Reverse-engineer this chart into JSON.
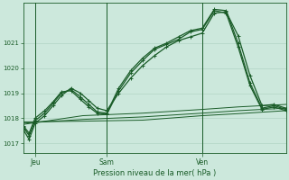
{
  "bg_color": "#cce8dc",
  "grid_color": "#aacfbf",
  "line_color": "#1a5c28",
  "xlabel": "Pression niveau de la mer( hPa )",
  "xtick_labels": [
    "Jeu",
    "Sam",
    "Ven"
  ],
  "ylim": [
    1016.6,
    1022.6
  ],
  "yticks": [
    1017,
    1018,
    1019,
    1020,
    1021
  ],
  "xlim": [
    0,
    22
  ],
  "xtick_positions": [
    1,
    7,
    15
  ],
  "vline_positions": [
    1,
    7,
    15
  ],
  "series": [
    {
      "x": [
        0,
        0.5,
        1,
        1.8,
        2.5,
        3.2,
        4.0,
        4.8,
        5.5,
        6.2,
        7.0,
        8.0,
        9.0,
        10.0,
        11.0,
        12.0,
        13.0,
        14.0,
        15.0,
        16.0,
        17.0,
        18.0,
        19.0,
        20.0,
        21.0,
        22.0
      ],
      "y": [
        1017.55,
        1017.15,
        1017.8,
        1018.1,
        1018.5,
        1018.9,
        1019.2,
        1019.0,
        1018.7,
        1018.4,
        1018.3,
        1019.0,
        1019.6,
        1020.1,
        1020.5,
        1020.85,
        1021.1,
        1021.25,
        1021.4,
        1022.2,
        1022.25,
        1021.3,
        1019.7,
        1018.5,
        1018.55,
        1018.4
      ],
      "marker": true,
      "lw": 0.9
    },
    {
      "x": [
        0,
        0.5,
        1,
        1.8,
        2.5,
        3.2,
        4.0,
        4.8,
        5.5,
        6.2,
        7.0,
        8.0,
        9.0,
        10.0,
        11.0,
        12.0,
        13.0,
        14.0,
        15.0,
        16.0,
        17.0,
        18.0,
        19.0,
        20.0,
        21.0,
        22.0
      ],
      "y": [
        1017.65,
        1017.3,
        1017.9,
        1018.2,
        1018.6,
        1019.0,
        1019.15,
        1018.85,
        1018.55,
        1018.25,
        1018.2,
        1019.2,
        1019.9,
        1020.4,
        1020.8,
        1021.0,
        1021.25,
        1021.5,
        1021.6,
        1022.35,
        1022.3,
        1021.0,
        1019.4,
        1018.4,
        1018.5,
        1018.35
      ],
      "marker": true,
      "lw": 0.9
    },
    {
      "x": [
        0,
        0.5,
        1,
        1.8,
        2.5,
        3.2,
        4.0,
        4.8,
        5.5,
        6.2,
        7.0,
        8.0,
        9.0,
        10.0,
        11.0,
        12.0,
        13.0,
        14.0,
        15.0,
        16.0,
        17.0,
        18.0,
        19.0,
        20.0,
        21.0,
        22.0
      ],
      "y": [
        1017.7,
        1017.4,
        1018.0,
        1018.3,
        1018.65,
        1019.05,
        1019.1,
        1018.75,
        1018.45,
        1018.2,
        1018.15,
        1019.1,
        1019.8,
        1020.3,
        1020.75,
        1020.95,
        1021.15,
        1021.45,
        1021.55,
        1022.3,
        1022.2,
        1020.85,
        1019.3,
        1018.35,
        1018.45,
        1018.3
      ],
      "marker": true,
      "lw": 0.9
    },
    {
      "x": [
        0,
        5,
        10,
        15,
        18,
        22
      ],
      "y": [
        1017.75,
        1018.1,
        1018.2,
        1018.35,
        1018.45,
        1018.55
      ],
      "marker": false,
      "lw": 0.7
    },
    {
      "x": [
        0,
        5,
        10,
        15,
        18,
        22
      ],
      "y": [
        1017.8,
        1017.95,
        1018.05,
        1018.2,
        1018.3,
        1018.4
      ],
      "marker": false,
      "lw": 0.7
    },
    {
      "x": [
        0,
        5,
        10,
        15,
        18,
        22
      ],
      "y": [
        1017.85,
        1017.88,
        1017.92,
        1018.1,
        1018.18,
        1018.3
      ],
      "marker": false,
      "lw": 0.7
    }
  ]
}
